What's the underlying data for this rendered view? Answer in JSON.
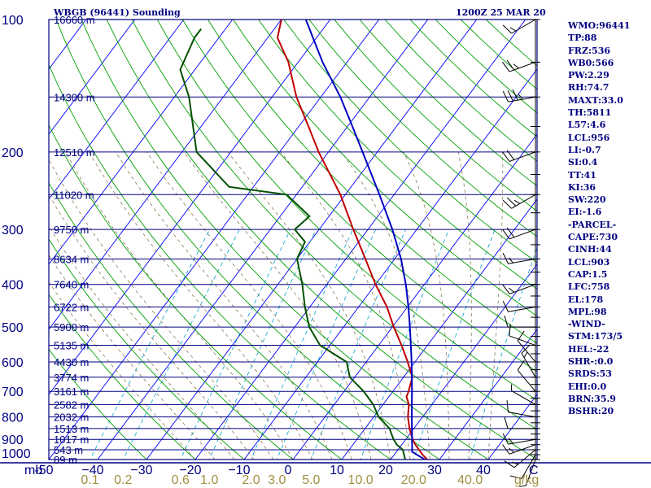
{
  "header": {
    "station": "WBGB (96441) Sounding",
    "time": "1200Z 25 MAR 20"
  },
  "indices": [
    "WMO:96441",
    "TP:88",
    "FRZ:536",
    "WB0:566",
    "PW:2.29",
    "RH:74.7",
    "MAXT:33.0",
    "TH:5811",
    "L57:4.6",
    "LCL:956",
    "LI:-0.7",
    "SI:0.4",
    "TT:41",
    "KI:36",
    "SW:220",
    "EI:-1.6",
    "-PARCEL-",
    "CAPE:730",
    "CINH:44",
    "LCL:903",
    "CAP:1.5",
    "LFC:758",
    "EL:178",
    "MPL:98",
    "-WIND-",
    "STM:173/5",
    "HEL:-22",
    "SHR-:0.0",
    "SRDS:53",
    "EHI:0.0",
    "BRN:35.9",
    "BSHR:20"
  ],
  "colors": {
    "axes": "#000080",
    "isotherm": "#0000ff",
    "dry_adiabat": "#00a000",
    "moist_adiabat": "#8a7a55",
    "mixing_ratio": "#00a0d0",
    "temperature": "#c00000",
    "dewpoint": "#005000",
    "parcel": "#0000c0",
    "wind": "#000000",
    "mixing_ratio_labels": "#a09040"
  },
  "chart_data": {
    "type": "skew-t",
    "title": "WBGB (96441) Sounding",
    "time": "1200Z 25 MAR 20",
    "ylabel": "mb",
    "xlabel": "",
    "ylim": [
      1000,
      100
    ],
    "xlim": [
      -50,
      50
    ],
    "pressure_ticks": [
      100,
      200,
      300,
      400,
      500,
      600,
      700,
      800,
      900,
      1000
    ],
    "temperature_ticks": [
      -50,
      -40,
      -30,
      -20,
      -10,
      0,
      10,
      20,
      30,
      40
    ],
    "temperature_tick_labels": [
      "-50",
      "−40",
      "−30",
      "−20",
      "−10",
      "0",
      "10",
      "20",
      "30",
      "40"
    ],
    "height_labels": [
      {
        "p": 100,
        "text": "16660 m"
      },
      {
        "p": 150,
        "text": "14300 m"
      },
      {
        "p": 200,
        "text": "12510 m"
      },
      {
        "p": 250,
        "text": "11020 m"
      },
      {
        "p": 300,
        "text": "9750 m"
      },
      {
        "p": 350,
        "text": "8634 m"
      },
      {
        "p": 400,
        "text": "7640 m"
      },
      {
        "p": 450,
        "text": "6722 m"
      },
      {
        "p": 500,
        "text": "5900 m"
      },
      {
        "p": 550,
        "text": "5135 m"
      },
      {
        "p": 600,
        "text": "4430 m"
      },
      {
        "p": 650,
        "text": "3774 m"
      },
      {
        "p": 700,
        "text": "3161 m"
      },
      {
        "p": 750,
        "text": "2582 m"
      },
      {
        "p": 800,
        "text": "2032 m"
      },
      {
        "p": 850,
        "text": "1513 m"
      },
      {
        "p": 900,
        "text": "1017 m"
      },
      {
        "p": 950,
        "text": "543 m"
      },
      {
        "p": 1000,
        "text": "89 m"
      }
    ],
    "mixing_ratio_labels": [
      {
        "w": 0.1,
        "text": "0.1"
      },
      {
        "w": 0.2,
        "text": "0.2"
      },
      {
        "w": 0.6,
        "text": "0.6"
      },
      {
        "w": 1.0,
        "text": "1.0"
      },
      {
        "w": 2.0,
        "text": "2.0"
      },
      {
        "w": 3.0,
        "text": "3.0"
      },
      {
        "w": 5.0,
        "text": "5.0"
      },
      {
        "w": 10.0,
        "text": "10.0"
      },
      {
        "w": 20.0,
        "text": "20.0"
      },
      {
        "w": 40.0,
        "text": "40.0"
      }
    ],
    "mixing_ratio_unit": "g/kg",
    "series": [
      {
        "key": "temperature",
        "points": [
          [
            1000,
            27.5
          ],
          [
            975,
            25.8
          ],
          [
            950,
            24.3
          ],
          [
            925,
            22.8
          ],
          [
            900,
            21.4
          ],
          [
            850,
            19.1
          ],
          [
            800,
            17.0
          ],
          [
            750,
            15.3
          ],
          [
            720,
            13.6
          ],
          [
            700,
            13.2
          ],
          [
            650,
            11.8
          ],
          [
            600,
            8.5
          ],
          [
            550,
            4.7
          ],
          [
            500,
            0.3
          ],
          [
            450,
            -4.2
          ],
          [
            400,
            -10.0
          ],
          [
            350,
            -16.0
          ],
          [
            300,
            -23.0
          ],
          [
            250,
            -31.0
          ],
          [
            200,
            -42.0
          ],
          [
            175,
            -48.0
          ],
          [
            150,
            -55.0
          ],
          [
            125,
            -62.0
          ],
          [
            110,
            -68.0
          ],
          [
            100,
            -70.0
          ]
        ]
      },
      {
        "key": "dewpoint",
        "points": [
          [
            1000,
            23.0
          ],
          [
            975,
            22.0
          ],
          [
            950,
            21.0
          ],
          [
            925,
            19.0
          ],
          [
            900,
            17.5
          ],
          [
            850,
            15.0
          ],
          [
            800,
            11.0
          ],
          [
            750,
            8.0
          ],
          [
            700,
            4.0
          ],
          [
            650,
            -1.0
          ],
          [
            600,
            -4.0
          ],
          [
            550,
            -12.0
          ],
          [
            500,
            -17.0
          ],
          [
            450,
            -21.0
          ],
          [
            400,
            -25.0
          ],
          [
            350,
            -30.0
          ],
          [
            320,
            -31.0
          ],
          [
            300,
            -35.0
          ],
          [
            280,
            -34.0
          ],
          [
            250,
            -42.0
          ],
          [
            240,
            -55.0
          ],
          [
            200,
            -67.0
          ],
          [
            150,
            -77.0
          ],
          [
            130,
            -83.0
          ],
          [
            110,
            -85.0
          ],
          [
            105,
            -85.0
          ]
        ]
      },
      {
        "key": "parcel",
        "points": [
          [
            1000,
            27.0
          ],
          [
            960,
            23.2
          ],
          [
            950,
            22.9
          ],
          [
            900,
            21.3
          ],
          [
            850,
            19.6
          ],
          [
            800,
            17.8
          ],
          [
            750,
            15.9
          ],
          [
            700,
            13.9
          ],
          [
            650,
            11.7
          ],
          [
            600,
            9.3
          ],
          [
            550,
            6.6
          ],
          [
            500,
            3.6
          ],
          [
            450,
            0.2
          ],
          [
            400,
            -3.8
          ],
          [
            350,
            -8.7
          ],
          [
            300,
            -15.0
          ],
          [
            250,
            -23.0
          ],
          [
            200,
            -33.0
          ],
          [
            175,
            -39.0
          ],
          [
            150,
            -46.0
          ],
          [
            125,
            -55.0
          ],
          [
            100,
            -65.0
          ]
        ]
      }
    ],
    "winds": [
      {
        "p": 1000,
        "dir": 200,
        "spd": 5
      },
      {
        "p": 975,
        "dir": 210,
        "spd": 10
      },
      {
        "p": 950,
        "dir": 230,
        "spd": 15
      },
      {
        "p": 925,
        "dir": 250,
        "spd": 15
      },
      {
        "p": 900,
        "dir": 260,
        "spd": 15
      },
      {
        "p": 850,
        "dir": 270,
        "spd": 10
      },
      {
        "p": 800,
        "dir": 280,
        "spd": 10
      },
      {
        "p": 750,
        "dir": 300,
        "spd": 5
      },
      {
        "p": 700,
        "dir": 320,
        "spd": 10
      },
      {
        "p": 650,
        "dir": 330,
        "spd": 15
      },
      {
        "p": 600,
        "dir": 320,
        "spd": 10
      },
      {
        "p": 550,
        "dir": 290,
        "spd": 10
      },
      {
        "p": 500,
        "dir": 270,
        "spd": 10
      },
      {
        "p": 450,
        "dir": 260,
        "spd": 10
      },
      {
        "p": 400,
        "dir": 250,
        "spd": 15
      },
      {
        "p": 350,
        "dir": 260,
        "spd": 15
      },
      {
        "p": 300,
        "dir": 250,
        "spd": 20
      },
      {
        "p": 250,
        "dir": 240,
        "spd": 25
      },
      {
        "p": 200,
        "dir": 250,
        "spd": 20
      },
      {
        "p": 150,
        "dir": 260,
        "spd": 35
      },
      {
        "p": 125,
        "dir": 250,
        "spd": 25
      },
      {
        "p": 100,
        "dir": 240,
        "spd": 15
      }
    ]
  }
}
